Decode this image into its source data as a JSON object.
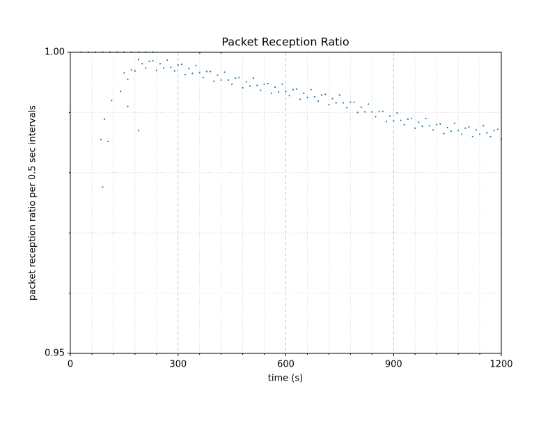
{
  "chart_data": {
    "type": "scatter",
    "title": "Packet Reception Ratio",
    "x_label": "time (s)",
    "y_label": "packet reception ratio per 0.5 sec intervals",
    "xlim": [
      0,
      1200
    ],
    "ylim": [
      0.95,
      1.0
    ],
    "xticks": [
      0,
      300,
      600,
      900,
      1200
    ],
    "yticks": [
      0.95,
      {
        "value": 1.0,
        "label": "1.00"
      }
    ],
    "xminorticks": [
      60,
      120,
      180,
      240,
      360,
      420,
      480,
      540,
      660,
      720,
      780,
      840,
      960,
      1020,
      1080,
      1140
    ],
    "yminorticks": [
      0.96,
      0.97,
      0.98,
      0.99
    ],
    "grid": true,
    "series": [
      {
        "color": "#1f77b4",
        "x": [
          30,
          50,
          70,
          90,
          110,
          130,
          150,
          170,
          190,
          210,
          230,
          85,
          90,
          95,
          105,
          115,
          140,
          160,
          190,
          360,
          420,
          150,
          160,
          170,
          180,
          190,
          200,
          210,
          220,
          230,
          240,
          250,
          260,
          270,
          280,
          290,
          300,
          310,
          320,
          330,
          340,
          350,
          360,
          370,
          380,
          390,
          400,
          410,
          420,
          430,
          440,
          450,
          460,
          470,
          480,
          490,
          500,
          510,
          520,
          530,
          540,
          550,
          560,
          570,
          580,
          590,
          600,
          610,
          620,
          630,
          640,
          650,
          660,
          670,
          680,
          690,
          700,
          710,
          720,
          730,
          740,
          750,
          760,
          770,
          780,
          790,
          800,
          810,
          820,
          830,
          840,
          850,
          860,
          870,
          880,
          890,
          900,
          910,
          920,
          930,
          940,
          950,
          960,
          970,
          980,
          990,
          1000,
          1010,
          1020,
          1030,
          1040,
          1050,
          1060,
          1070,
          1080,
          1090,
          1100,
          1110,
          1120,
          1130,
          1140,
          1150,
          1160,
          1170,
          1180,
          1190,
          1200
        ],
        "values": [
          1.0,
          1.0,
          1.0,
          1.0,
          1.0,
          1.0,
          1.0,
          1.0,
          1.0,
          1.0,
          1.0,
          0.9855,
          0.9776,
          0.9889,
          0.9852,
          0.992,
          0.9935,
          0.991,
          0.987,
          0.9999,
          0.9999,
          0.9966,
          0.9955,
          0.9971,
          0.9969,
          0.9988,
          0.9981,
          0.9974,
          0.9985,
          0.9986,
          0.997,
          0.9981,
          0.9974,
          0.9987,
          0.9975,
          0.9969,
          0.9979,
          0.998,
          0.9963,
          0.9973,
          0.9965,
          0.9978,
          0.9966,
          0.9958,
          0.9968,
          0.9968,
          0.9952,
          0.9962,
          0.9954,
          0.9967,
          0.9954,
          0.9947,
          0.9957,
          0.9958,
          0.9941,
          0.9951,
          0.9944,
          0.9957,
          0.9945,
          0.9937,
          0.9947,
          0.9948,
          0.9932,
          0.9942,
          0.9934,
          0.9947,
          0.9935,
          0.9928,
          0.9938,
          0.9939,
          0.9922,
          0.9932,
          0.9925,
          0.9938,
          0.9926,
          0.9919,
          0.9929,
          0.993,
          0.9913,
          0.9923,
          0.9916,
          0.9929,
          0.9916,
          0.9908,
          0.9917,
          0.9917,
          0.99,
          0.9909,
          0.9901,
          0.9914,
          0.9901,
          0.9893,
          0.9902,
          0.9902,
          0.9885,
          0.9894,
          0.9886,
          0.9899,
          0.9887,
          0.988,
          0.9889,
          0.989,
          0.9874,
          0.9884,
          0.9877,
          0.989,
          0.9878,
          0.9871,
          0.988,
          0.9881,
          0.9865,
          0.9875,
          0.9869,
          0.9882,
          0.987,
          0.9864,
          0.9874,
          0.9876,
          0.986,
          0.9871,
          0.9864,
          0.9878,
          0.9866,
          0.986,
          0.987,
          0.9872,
          0.9856
        ]
      }
    ]
  }
}
